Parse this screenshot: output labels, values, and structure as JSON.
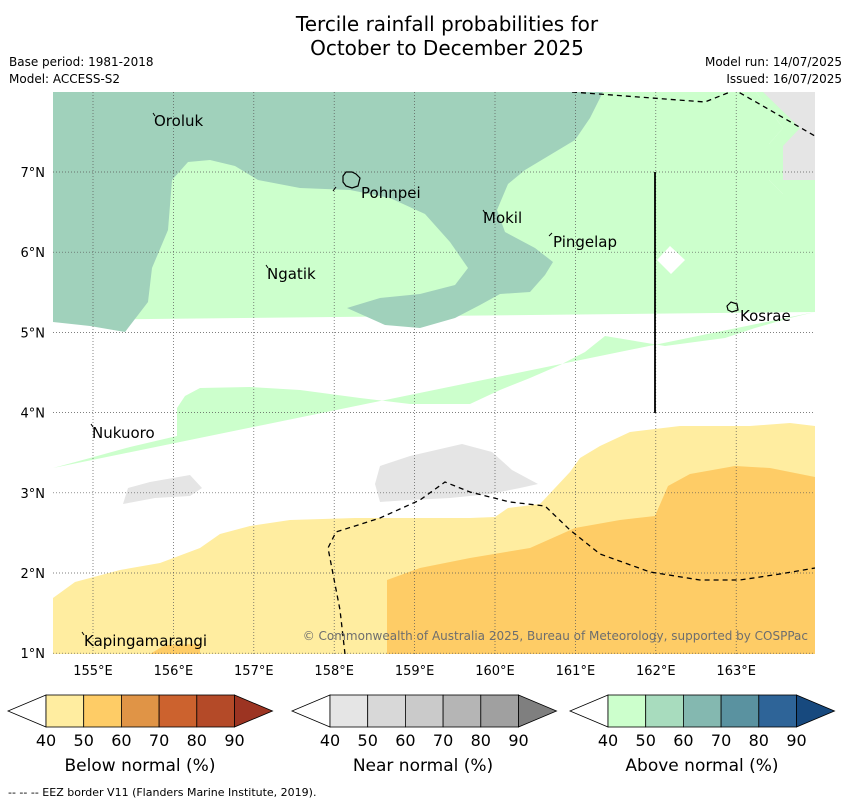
{
  "title": {
    "line1": "Tercile rainfall probabilities for",
    "line2": "October to December 2025"
  },
  "meta": {
    "base_period": "Base period: 1981-2018",
    "model": "Model: ACCESS-S2",
    "model_run": "Model run: 14/07/2025",
    "issued": "Issued: 16/07/2025"
  },
  "map": {
    "lon_ticks": [
      {
        "lon": 155,
        "label": "155°E"
      },
      {
        "lon": 156,
        "label": "156°E"
      },
      {
        "lon": 157,
        "label": "157°E"
      },
      {
        "lon": 158,
        "label": "158°E"
      },
      {
        "lon": 159,
        "label": "159°E"
      },
      {
        "lon": 160,
        "label": "160°E"
      },
      {
        "lon": 161,
        "label": "161°E"
      },
      {
        "lon": 162,
        "label": "162°E"
      },
      {
        "lon": 163,
        "label": "163°E"
      }
    ],
    "lat_ticks": [
      {
        "lat": 7,
        "label": "7°N"
      },
      {
        "lat": 6,
        "label": "6°N"
      },
      {
        "lat": 5,
        "label": "5°N"
      },
      {
        "lat": 4,
        "label": "4°N"
      },
      {
        "lat": 3,
        "label": "3°N"
      },
      {
        "lat": 2,
        "label": "2°N"
      },
      {
        "lat": 1,
        "label": "1°N"
      }
    ],
    "places": [
      {
        "name": "Oroluk"
      },
      {
        "name": "Pohnpei"
      },
      {
        "name": "Mokil"
      },
      {
        "name": "Pingelap"
      },
      {
        "name": "Ngatik"
      },
      {
        "name": "Kosrae"
      },
      {
        "name": "Nukuoro"
      },
      {
        "name": "Kapingamarangi"
      }
    ],
    "copyright": "© Commonwealth of Australia 2025, Bureau of Meteorology, supported by COSPPac"
  },
  "colors": {
    "above_50": "#ccffcc",
    "above_60": "#a0d1bb",
    "below_50": "#ffeda0",
    "below_60": "#fecc66",
    "near_50": "#e5e5e5"
  },
  "colorbars": [
    {
      "title": "Below normal (%)",
      "ticks": [
        "40",
        "50",
        "60",
        "70",
        "80",
        "90"
      ],
      "colors": [
        "#ffeda0",
        "#fecc66",
        "#e09446",
        "#cc622e",
        "#b44a28",
        "#9c3422"
      ]
    },
    {
      "title": "Near normal (%)",
      "ticks": [
        "40",
        "50",
        "60",
        "70",
        "80",
        "90"
      ],
      "colors": [
        "#e5e5e5",
        "#d8d8d8",
        "#cacaca",
        "#b5b5b5",
        "#a0a0a0",
        "#7f7f7f"
      ]
    },
    {
      "title": "Above normal (%)",
      "ticks": [
        "40",
        "50",
        "60",
        "70",
        "80",
        "90"
      ],
      "colors": [
        "#ccffcc",
        "#a8dcbe",
        "#84b8b0",
        "#5a92a0",
        "#2e6498",
        "#17497e"
      ]
    }
  ],
  "footer": "--  --  -- EEZ border V11 (Flanders Marine Institute, 2019)."
}
